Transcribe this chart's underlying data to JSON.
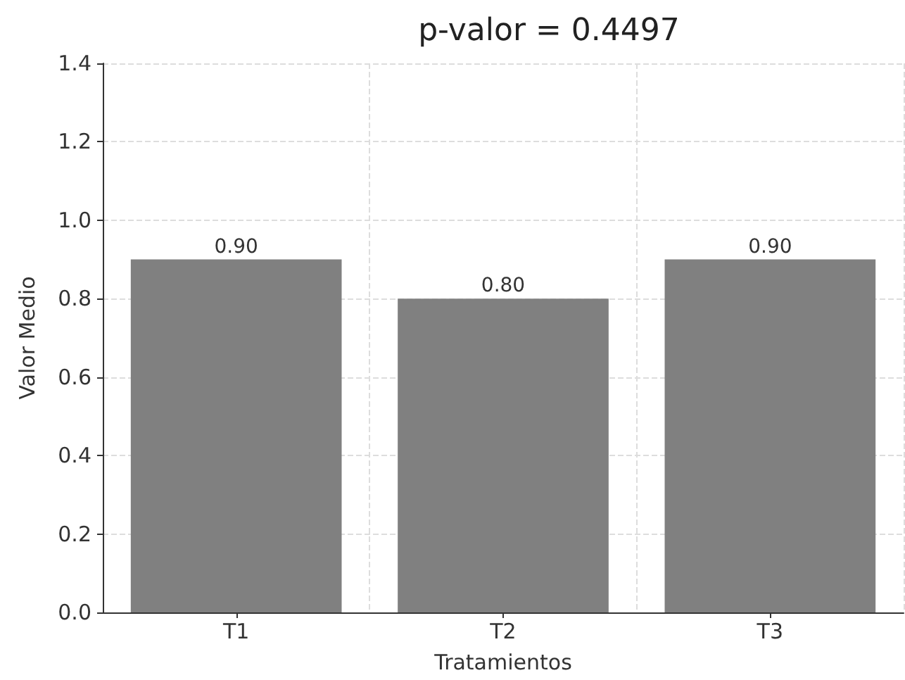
{
  "chart_data": {
    "type": "bar",
    "title": "p-valor = 0.4497",
    "xlabel": "Tratamientos",
    "ylabel": "Valor Medio",
    "categories": [
      "T1",
      "T2",
      "T3"
    ],
    "values": [
      0.9,
      0.8,
      0.9
    ],
    "value_labels": [
      "0.90",
      "0.80",
      "0.90"
    ],
    "color": "#808080",
    "ylim": [
      0,
      1.4
    ],
    "yticks": [
      {
        "value": 0,
        "label": "0.0"
      },
      {
        "value": 0.2,
        "label": "0.2"
      },
      {
        "value": 0.4,
        "label": "0.4"
      },
      {
        "value": 0.6,
        "label": "0.6"
      },
      {
        "value": 0.8,
        "label": "0.8"
      },
      {
        "value": 1.0,
        "label": "1.0"
      },
      {
        "value": 1.2,
        "label": "1.2"
      },
      {
        "value": 1.4,
        "label": "1.4"
      }
    ],
    "grid": true
  }
}
